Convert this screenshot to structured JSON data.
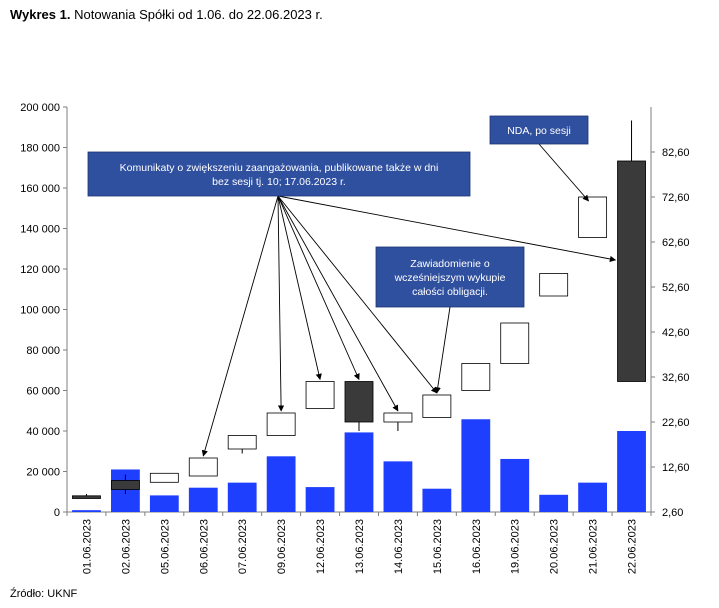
{
  "title": {
    "prefix": "Wykres 1.",
    "text": "Notowania Spółki od 1.06. do 22.06.2023 r."
  },
  "source": "Źródło: UKNF",
  "colors": {
    "volume": "#1F3FFF",
    "up_candle": "#FFFFFF",
    "down_candle": "#3A3A3A",
    "annotation": "#2F4F9F"
  },
  "chart_data": {
    "type": "candlestick+bar",
    "categories": [
      "01.06.2023",
      "02.06.2023",
      "05.06.2023",
      "06.06.2023",
      "07.06.2023",
      "09.06.2023",
      "12.06.2023",
      "13.06.2023",
      "14.06.2023",
      "15.06.2023",
      "16.06.2023",
      "19.06.2023",
      "20.06.2023",
      "21.06.2023",
      "22.06.2023"
    ],
    "volume": [
      900,
      21000,
      8200,
      12000,
      14500,
      27500,
      12300,
      39300,
      25000,
      11500,
      45800,
      26200,
      8500,
      14500,
      40000
    ],
    "ohlc": [
      {
        "open": 6.2,
        "high": 6.6,
        "low": 5.6,
        "close": 5.6
      },
      {
        "open": 9.6,
        "high": 10.9,
        "low": 6.6,
        "close": 7.6
      },
      {
        "open": 9.2,
        "high": 11.2,
        "low": 9.2,
        "close": 11.2
      },
      {
        "open": 10.6,
        "high": 14.6,
        "low": 10.6,
        "close": 14.6
      },
      {
        "open": 16.6,
        "high": 19.6,
        "low": 15.6,
        "close": 19.6
      },
      {
        "open": 19.6,
        "high": 24.6,
        "low": 19.6,
        "close": 24.6
      },
      {
        "open": 25.6,
        "high": 31.6,
        "low": 25.6,
        "close": 31.6
      },
      {
        "open": 31.6,
        "high": 31.6,
        "low": 20.6,
        "close": 22.6
      },
      {
        "open": 22.6,
        "high": 24.6,
        "low": 20.6,
        "close": 24.6
      },
      {
        "open": 23.6,
        "high": 28.6,
        "low": 23.6,
        "close": 28.6
      },
      {
        "open": 29.6,
        "high": 35.6,
        "low": 29.6,
        "close": 35.6
      },
      {
        "open": 35.6,
        "high": 44.6,
        "low": 35.6,
        "close": 44.6
      },
      {
        "open": 50.6,
        "high": 55.6,
        "low": 50.6,
        "close": 55.6
      },
      {
        "open": 63.6,
        "high": 72.6,
        "low": 63.6,
        "close": 72.6
      },
      {
        "open": 80.6,
        "high": 89.6,
        "low": 31.6,
        "close": 31.6
      }
    ],
    "y_left": {
      "min": 0,
      "max": 200000,
      "ticks": [
        "0",
        "20 000",
        "40 000",
        "60 000",
        "80 000",
        "100 000",
        "120 000",
        "140 000",
        "160 000",
        "180 000",
        "200 000"
      ]
    },
    "y_right": {
      "min": 2.6,
      "max": 92.6,
      "ticks": [
        "2,60",
        "12,60",
        "22,60",
        "32,60",
        "42,60",
        "52,60",
        "62,60",
        "72,60",
        "82,60"
      ]
    },
    "annotations": [
      {
        "lines": [
          "Komunikaty o zwiększeniu zaangażowania, publikowane także w dni",
          "bez sesji tj. 10; 17.06.2023 r."
        ],
        "targets": [
          3,
          5,
          6,
          7,
          8,
          9,
          14
        ]
      },
      {
        "lines": [
          "Zawiadomienie o",
          "wcześniejszym wykupie",
          "całości obligacji."
        ],
        "targets": [
          9
        ]
      },
      {
        "lines": [
          "NDA, po sesji"
        ],
        "targets": [
          13
        ]
      }
    ]
  }
}
